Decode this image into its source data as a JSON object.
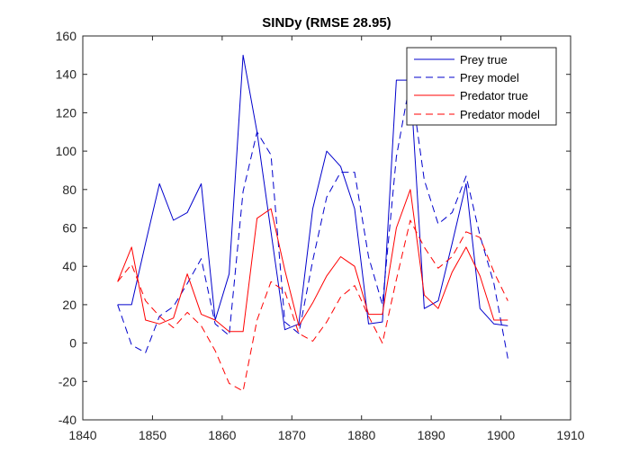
{
  "chart_data": {
    "type": "line",
    "title": "SINDy (RMSE 28.95)",
    "xlabel": "",
    "ylabel": "",
    "xlim": [
      1840,
      1910
    ],
    "ylim": [
      -40,
      160
    ],
    "xticks": [
      1840,
      1850,
      1860,
      1870,
      1880,
      1890,
      1900,
      1910
    ],
    "yticks": [
      -40,
      -20,
      0,
      20,
      40,
      60,
      80,
      100,
      120,
      140,
      160
    ],
    "grid": false,
    "legend_position": "top-right",
    "x": [
      1845,
      1847,
      1849,
      1851,
      1853,
      1855,
      1857,
      1859,
      1861,
      1863,
      1865,
      1867,
      1869,
      1871,
      1873,
      1875,
      1877,
      1879,
      1881,
      1883,
      1885,
      1887,
      1889,
      1891,
      1893,
      1895,
      1897,
      1899,
      1901
    ],
    "series": [
      {
        "name": "Prey true",
        "color": "#0000cc",
        "dash": "solid",
        "values": [
          20,
          20,
          52,
          83,
          64,
          68,
          83,
          12,
          36,
          150,
          110,
          58,
          7,
          10,
          70,
          100,
          92,
          70,
          10,
          11,
          137,
          137,
          18,
          22,
          52,
          83,
          18,
          10,
          9
        ]
      },
      {
        "name": "Prey model",
        "color": "#0000cc",
        "dash": "dashed",
        "values": [
          20,
          -1,
          -5,
          14,
          19,
          31,
          44,
          10,
          4,
          79,
          110,
          98,
          11,
          5,
          43,
          76,
          89,
          89,
          45,
          20,
          97,
          137,
          85,
          62,
          68,
          87,
          56,
          31,
          -8
        ]
      },
      {
        "name": "Predator true",
        "color": "#ff0000",
        "dash": "solid",
        "values": [
          32,
          50,
          12,
          10,
          13,
          36,
          15,
          12,
          6,
          6,
          65,
          70,
          38,
          9,
          21,
          35,
          45,
          40,
          15,
          15,
          60,
          80,
          25,
          18,
          37,
          50,
          35,
          12,
          12
        ]
      },
      {
        "name": "Predator model",
        "color": "#ff0000",
        "dash": "dashed",
        "values": [
          32,
          41,
          22,
          14,
          8,
          16,
          9,
          -4,
          -21,
          -25,
          12,
          32,
          27,
          5,
          1,
          11,
          24,
          30,
          14,
          0,
          33,
          64,
          50,
          39,
          45,
          58,
          55,
          37,
          22
        ]
      }
    ]
  }
}
